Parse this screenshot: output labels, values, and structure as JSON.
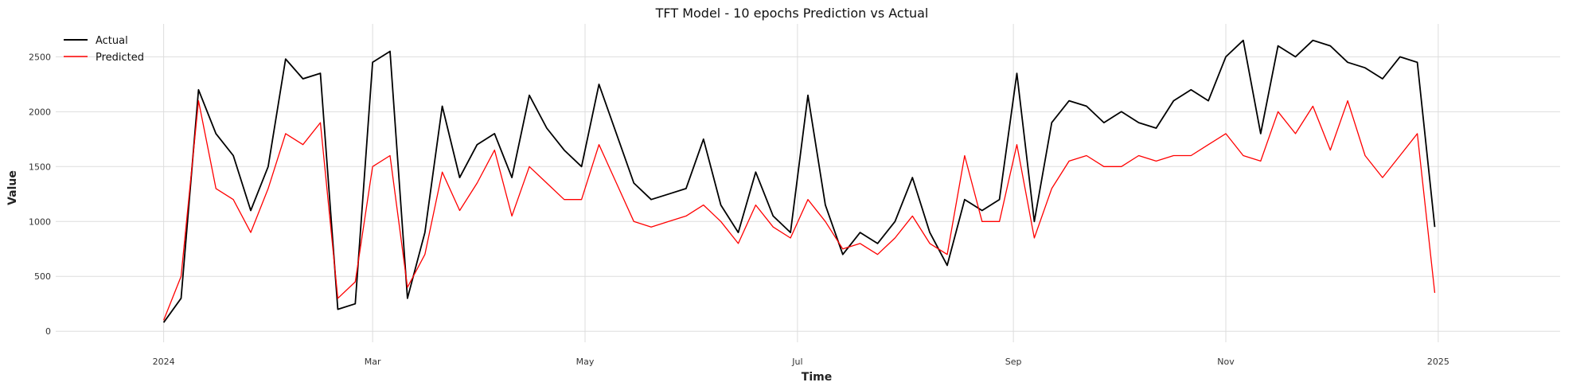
{
  "chart_data": {
    "type": "line",
    "title": "TFT Model - 10 epochs Prediction vs Actual",
    "xlabel": "Time",
    "ylabel": "Value",
    "xlim": [
      "2023-12-01",
      "2025-02-05"
    ],
    "ylim": [
      -100,
      2800
    ],
    "x_ticks": [
      {
        "date": "2024-01-01",
        "label": "2024"
      },
      {
        "date": "2024-03-01",
        "label": "Mar"
      },
      {
        "date": "2024-05-01",
        "label": "May"
      },
      {
        "date": "2024-07-01",
        "label": "Jul"
      },
      {
        "date": "2024-09-01",
        "label": "Sep"
      },
      {
        "date": "2024-11-01",
        "label": "Nov"
      },
      {
        "date": "2025-01-01",
        "label": "2025"
      }
    ],
    "y_ticks": [
      0,
      500,
      1000,
      1500,
      2000,
      2500
    ],
    "grid": true,
    "legend_position": "top-left",
    "x": [
      "2024-01-01",
      "2024-01-06",
      "2024-01-11",
      "2024-01-16",
      "2024-01-21",
      "2024-01-26",
      "2024-01-31",
      "2024-02-05",
      "2024-02-10",
      "2024-02-15",
      "2024-02-20",
      "2024-02-25",
      "2024-03-01",
      "2024-03-06",
      "2024-03-11",
      "2024-03-16",
      "2024-03-21",
      "2024-03-26",
      "2024-03-31",
      "2024-04-05",
      "2024-04-10",
      "2024-04-15",
      "2024-04-20",
      "2024-04-25",
      "2024-04-30",
      "2024-05-05",
      "2024-05-10",
      "2024-05-15",
      "2024-05-20",
      "2024-05-25",
      "2024-05-30",
      "2024-06-04",
      "2024-06-09",
      "2024-06-14",
      "2024-06-19",
      "2024-06-24",
      "2024-06-29",
      "2024-07-04",
      "2024-07-09",
      "2024-07-14",
      "2024-07-19",
      "2024-07-24",
      "2024-07-29",
      "2024-08-03",
      "2024-08-08",
      "2024-08-13",
      "2024-08-18",
      "2024-08-23",
      "2024-08-28",
      "2024-09-02",
      "2024-09-07",
      "2024-09-12",
      "2024-09-17",
      "2024-09-22",
      "2024-09-27",
      "2024-10-02",
      "2024-10-07",
      "2024-10-12",
      "2024-10-17",
      "2024-10-22",
      "2024-10-27",
      "2024-11-01",
      "2024-11-06",
      "2024-11-11",
      "2024-11-16",
      "2024-11-21",
      "2024-11-26",
      "2024-12-01",
      "2024-12-06",
      "2024-12-11",
      "2024-12-16",
      "2024-12-21",
      "2024-12-26",
      "2024-12-31"
    ],
    "series": [
      {
        "name": "Actual",
        "color": "#000000",
        "values": [
          80,
          300,
          2200,
          1800,
          1600,
          1100,
          1500,
          2480,
          2300,
          2350,
          200,
          250,
          2450,
          2550,
          300,
          900,
          2050,
          1400,
          1700,
          1800,
          1400,
          2150,
          1850,
          1650,
          1500,
          2250,
          1800,
          1350,
          1200,
          1250,
          1300,
          1750,
          1150,
          900,
          1450,
          1050,
          900,
          2150,
          1150,
          700,
          900,
          800,
          1000,
          1400,
          900,
          600,
          1200,
          1100,
          1200,
          2350,
          1000,
          1900,
          2100,
          2050,
          1900,
          2000,
          1900,
          1850,
          2100,
          2200,
          2100,
          2500,
          2650,
          1800,
          2600,
          2500,
          2650,
          2600,
          2450,
          2400,
          2300,
          2500,
          2450,
          950
        ]
      },
      {
        "name": "Predicted",
        "color": "#ff0000",
        "values": [
          100,
          500,
          2100,
          1300,
          1200,
          900,
          1300,
          1800,
          1700,
          1900,
          300,
          450,
          1500,
          1600,
          400,
          700,
          1450,
          1100,
          1350,
          1650,
          1050,
          1500,
          1350,
          1200,
          1200,
          1700,
          1350,
          1000,
          950,
          1000,
          1050,
          1150,
          1000,
          800,
          1150,
          950,
          850,
          1200,
          1000,
          750,
          800,
          700,
          850,
          1050,
          800,
          700,
          1600,
          1000,
          1000,
          1700,
          850,
          1300,
          1550,
          1600,
          1500,
          1500,
          1600,
          1550,
          1600,
          1600,
          1700,
          1800,
          1600,
          1550,
          2000,
          1800,
          2050,
          1650,
          2100,
          1600,
          1400,
          1600,
          1800,
          350
        ]
      }
    ]
  }
}
